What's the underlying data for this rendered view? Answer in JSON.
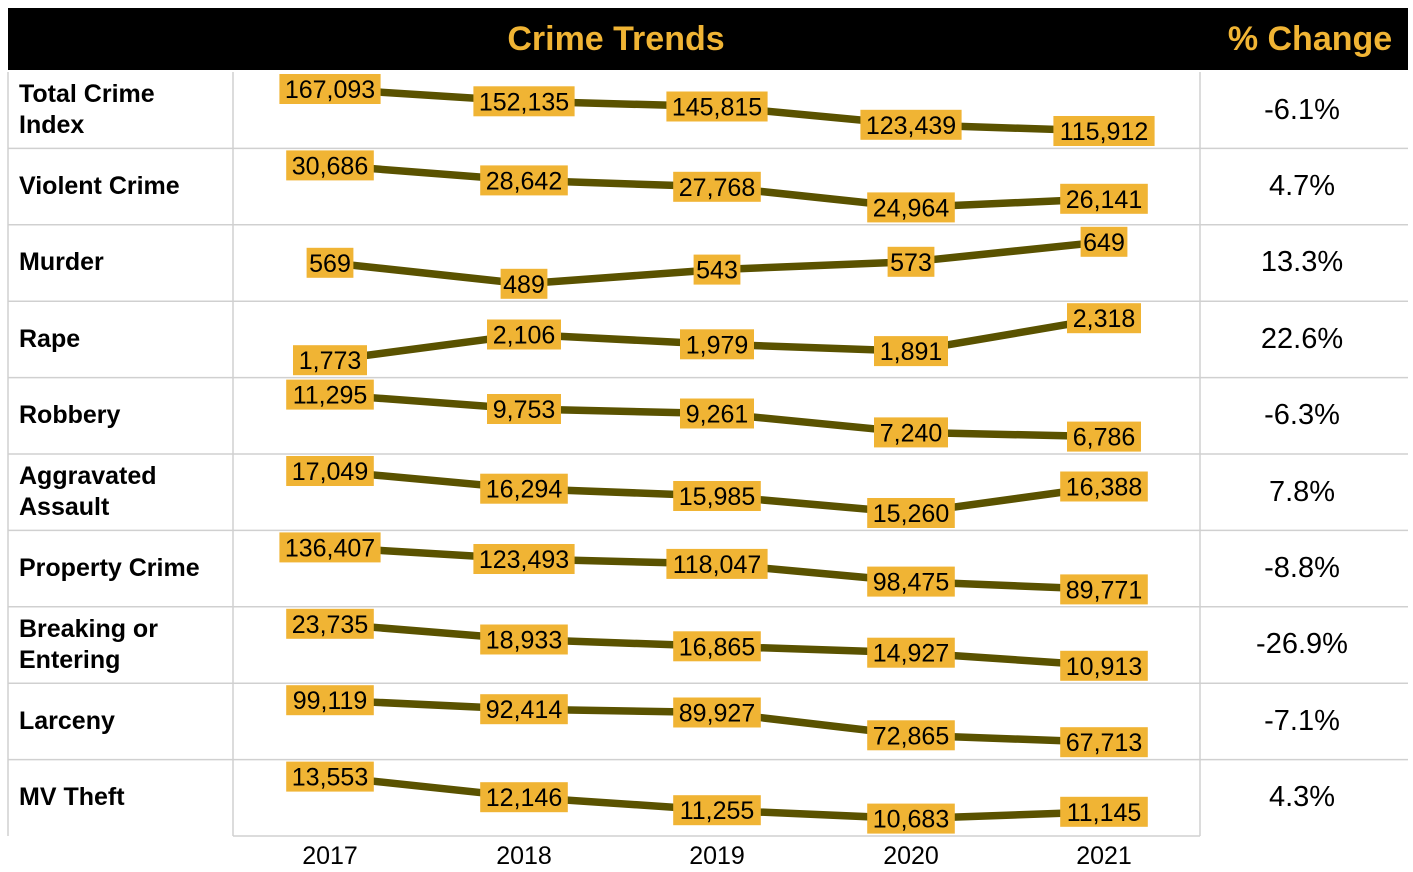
{
  "header": {
    "title": "Crime Trends",
    "change_title": "% Change"
  },
  "colors": {
    "header_bg": "#000000",
    "header_text": "#f0b434",
    "line": "#5a5200",
    "label_bg": "#f0b434",
    "grid": "#d0d0d0"
  },
  "chart_data": {
    "type": "line",
    "title": "Crime Trends",
    "x": [
      "2017",
      "2018",
      "2019",
      "2020",
      "2021"
    ],
    "series": [
      {
        "name": "Total Crime Index",
        "values": [
          167093,
          152135,
          145815,
          123439,
          115912
        ],
        "labels": [
          "167,093",
          "152,135",
          "145,815",
          "123,439",
          "115,912"
        ],
        "pct_change": "-6.1%"
      },
      {
        "name": "Violent Crime",
        "values": [
          30686,
          28642,
          27768,
          24964,
          26141
        ],
        "labels": [
          "30,686",
          "28,642",
          "27,768",
          "24,964",
          "26,141"
        ],
        "pct_change": "4.7%"
      },
      {
        "name": "Murder",
        "values": [
          569,
          489,
          543,
          573,
          649
        ],
        "labels": [
          "569",
          "489",
          "543",
          "573",
          "649"
        ],
        "pct_change": "13.3%"
      },
      {
        "name": "Rape",
        "values": [
          1773,
          2106,
          1979,
          1891,
          2318
        ],
        "labels": [
          "1,773",
          "2,106",
          "1,979",
          "1,891",
          "2,318"
        ],
        "pct_change": "22.6%"
      },
      {
        "name": "Robbery",
        "values": [
          11295,
          9753,
          9261,
          7240,
          6786
        ],
        "labels": [
          "11,295",
          "9,753",
          "9,261",
          "7,240",
          "6,786"
        ],
        "pct_change": "-6.3%"
      },
      {
        "name": "Aggravated Assault",
        "values": [
          17049,
          16294,
          15985,
          15260,
          16388
        ],
        "labels": [
          "17,049",
          "16,294",
          "15,985",
          "15,260",
          "16,388"
        ],
        "pct_change": "7.8%"
      },
      {
        "name": "Property Crime",
        "values": [
          136407,
          123493,
          118047,
          98475,
          89771
        ],
        "labels": [
          "136,407",
          "123,493",
          "118,047",
          "98,475",
          "89,771"
        ],
        "pct_change": "-8.8%"
      },
      {
        "name": "Breaking or Entering",
        "values": [
          23735,
          18933,
          16865,
          14927,
          10913
        ],
        "labels": [
          "23,735",
          "18,933",
          "16,865",
          "14,927",
          "10,913"
        ],
        "pct_change": "-26.9%"
      },
      {
        "name": "Larceny",
        "values": [
          99119,
          92414,
          89927,
          72865,
          67713
        ],
        "labels": [
          "99,119",
          "92,414",
          "89,927",
          "72,865",
          "67,713"
        ],
        "pct_change": "-7.1%"
      },
      {
        "name": "MV Theft",
        "values": [
          13553,
          12146,
          11255,
          10683,
          11145
        ],
        "labels": [
          "13,553",
          "12,146",
          "11,255",
          "10,683",
          "11,145"
        ],
        "pct_change": "4.3%"
      }
    ]
  }
}
